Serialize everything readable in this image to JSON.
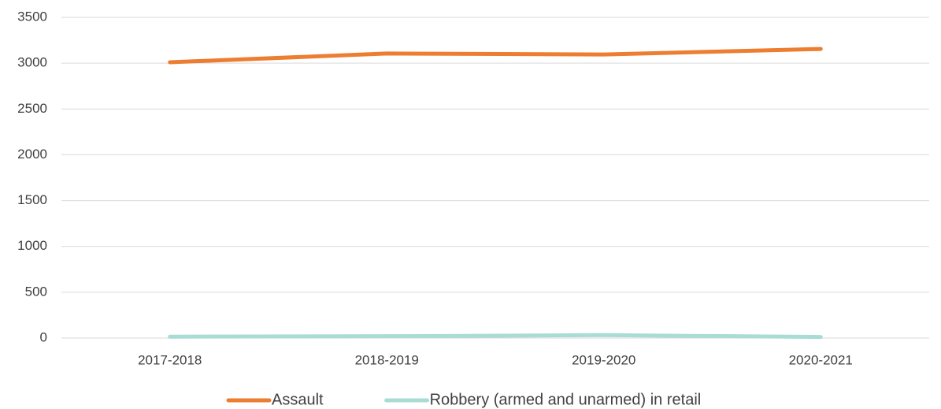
{
  "chart_data": {
    "type": "line",
    "categories": [
      "2017-2018",
      "2018-2019",
      "2019-2020",
      "2020-2021"
    ],
    "series": [
      {
        "name": "Assault",
        "color": "#ed7d31",
        "values": [
          3010,
          3105,
          3095,
          3155
        ]
      },
      {
        "name": "Robbery (armed and unarmed) in retail",
        "color": "#a8dcd5",
        "values": [
          15,
          20,
          32,
          12
        ]
      }
    ],
    "ylim": [
      0,
      3500
    ],
    "yticks": [
      0,
      500,
      1000,
      1500,
      2000,
      2500,
      3000,
      3500
    ],
    "grid": true,
    "legend": "bottom"
  }
}
